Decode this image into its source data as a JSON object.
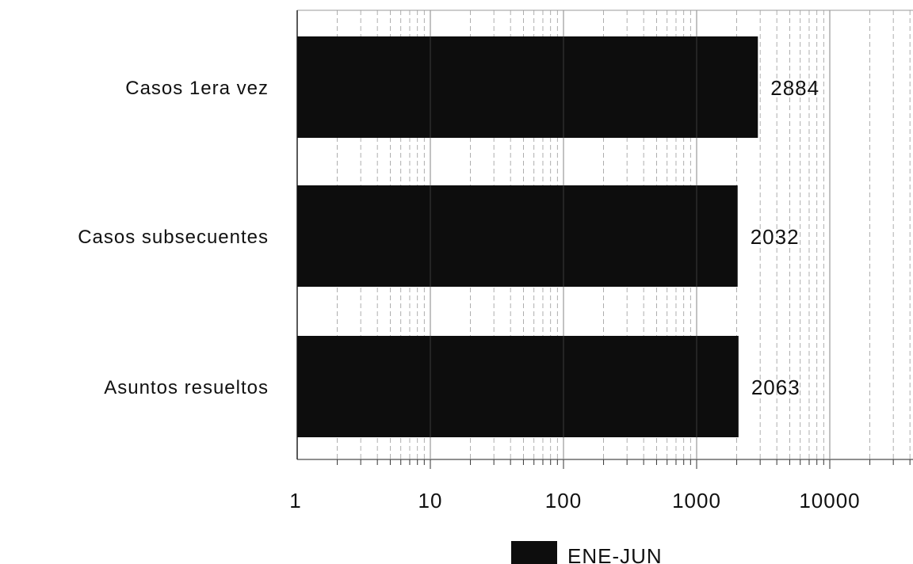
{
  "chart_data": {
    "type": "bar",
    "orientation": "horizontal",
    "title": "",
    "xlabel": "",
    "ylabel": "",
    "x_scale": "log",
    "xlim": [
      1,
      50000
    ],
    "x_ticks": [
      1,
      10,
      100,
      1000,
      10000
    ],
    "x_tick_labels": [
      "1",
      "10",
      "100",
      "1000",
      "10000"
    ],
    "grid": true,
    "legend_position": "bottom",
    "categories": [
      "Casos 1era vez",
      "Casos subsecuentes",
      "Asuntos resueltos"
    ],
    "series": [
      {
        "name": "ENE-JUN",
        "values": [
          2884,
          2032,
          2063
        ],
        "value_labels": [
          "2884",
          "2032",
          "2063"
        ],
        "color": "#0d0d0d"
      }
    ],
    "colors": {
      "bar": "#0d0d0d",
      "grid": "#9a9a9a",
      "text": "#111111"
    }
  }
}
